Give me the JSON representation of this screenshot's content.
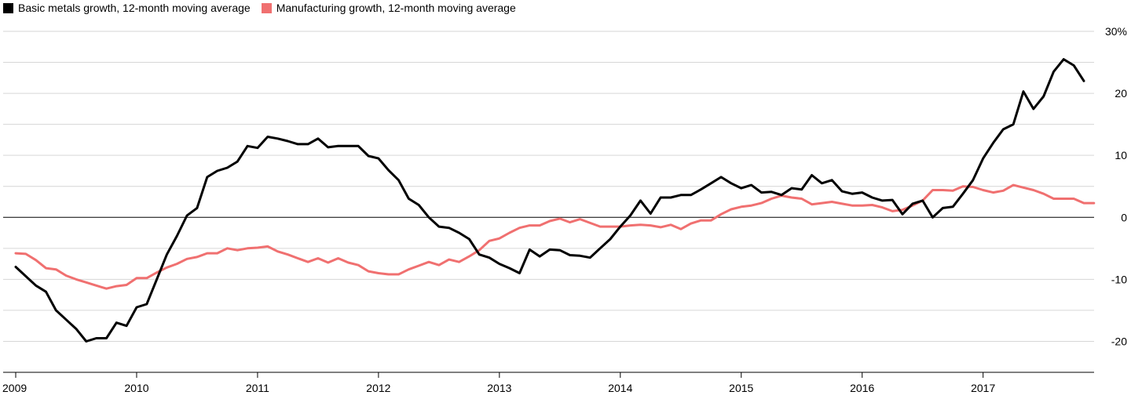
{
  "chart_data": {
    "type": "line",
    "x_unit": "month",
    "x_range": [
      "2009-01",
      "2017-12"
    ],
    "ylim": [
      -25,
      30
    ],
    "y_ticks": [
      -20,
      -10,
      0,
      10,
      20,
      30
    ],
    "y_tick_labels": [
      "-20",
      "-10",
      "0",
      "10",
      "20",
      "30%"
    ],
    "x_tick_labels": [
      "2009",
      "2010",
      "2011",
      "2012",
      "2013",
      "2014",
      "2015",
      "2016",
      "2017"
    ],
    "grid": true,
    "legend_position": "top-left",
    "y_axis_side": "right",
    "series": [
      {
        "name": "Basic metals growth, 12-month moving average",
        "color": "#000000",
        "start": "2009-01",
        "values": [
          -8,
          -9.5,
          -11,
          -12,
          -15,
          -16.5,
          -18,
          -20,
          -19.5,
          -19.5,
          -17,
          -17.5,
          -14.5,
          -14,
          -10,
          -6,
          -3,
          0.3,
          1.5,
          6.5,
          7.5,
          8,
          9,
          11.5,
          11.2,
          13,
          12.7,
          12.3,
          11.8,
          11.8,
          12.7,
          11.3,
          11.5,
          11.5,
          11.5,
          9.9,
          9.5,
          7.6,
          6,
          3,
          2,
          0,
          -1.5,
          -1.7,
          -2.5,
          -3.5,
          -6,
          -6.5,
          -7.5,
          -8.2,
          -9,
          -5.2,
          -6.3,
          -5.2,
          -5.3,
          -6.1,
          -6.2,
          -6.5,
          -5,
          -3.5,
          -1.5,
          0.3,
          2.7,
          0.6,
          3.2,
          3.2,
          3.6,
          3.6,
          4.5,
          5.5,
          6.5,
          5.5,
          4.7,
          5.2,
          4,
          4.1,
          3.6,
          4.7,
          4.5,
          6.8,
          5.5,
          6,
          4.2,
          3.8,
          4,
          3.2,
          2.7,
          2.8,
          0.5,
          2.2,
          2.7,
          0,
          1.5,
          1.7,
          3.8,
          6,
          9.5,
          12,
          14.2,
          15,
          20.3,
          17.5,
          19.5,
          23.5,
          25.5,
          24.5,
          22
        ]
      },
      {
        "name": "Manufacturing growth, 12-month moving average",
        "color": "#f07070",
        "start": "2009-01",
        "values": [
          -5.8,
          -5.9,
          -6.9,
          -8.2,
          -8.4,
          -9.4,
          -10,
          -10.5,
          -11,
          -11.5,
          -11.1,
          -10.9,
          -9.8,
          -9.8,
          -8.9,
          -8.1,
          -7.5,
          -6.7,
          -6.4,
          -5.8,
          -5.8,
          -5,
          -5.3,
          -5,
          -4.9,
          -4.7,
          -5.5,
          -6,
          -6.6,
          -7.2,
          -6.6,
          -7.3,
          -6.6,
          -7.3,
          -7.7,
          -8.7,
          -9,
          -9.2,
          -9.2,
          -8.4,
          -7.8,
          -7.2,
          -7.7,
          -6.8,
          -7.2,
          -6.3,
          -5.3,
          -3.8,
          -3.4,
          -2.5,
          -1.7,
          -1.3,
          -1.3,
          -0.6,
          -0.2,
          -0.8,
          -0.3,
          -0.9,
          -1.5,
          -1.5,
          -1.5,
          -1.3,
          -1.2,
          -1.3,
          -1.6,
          -1.2,
          -1.9,
          -1,
          -0.5,
          -0.5,
          0.5,
          1.3,
          1.7,
          1.9,
          2.3,
          3,
          3.5,
          3.2,
          3,
          2.1,
          2.3,
          2.5,
          2.2,
          1.9,
          1.9,
          2,
          1.6,
          1,
          1.2,
          1.9,
          2.7,
          4.4,
          4.4,
          4.3,
          5,
          4.9,
          4.4,
          4,
          4.3,
          5.2,
          4.8,
          4.4,
          3.8,
          3,
          3,
          3,
          2.3,
          2.3
        ]
      }
    ]
  }
}
